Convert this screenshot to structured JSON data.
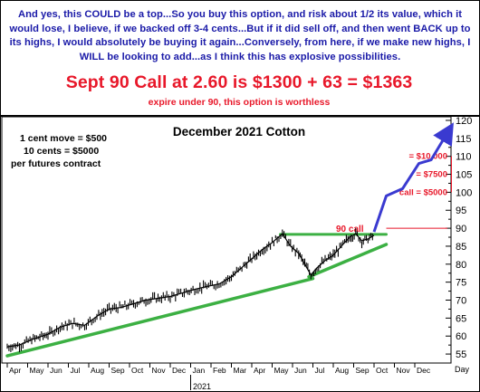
{
  "header": {
    "intro": "And yes, this COULD be a top...So you buy this option, and risk about 1/2 its value, which it would lose, I believe, if we backed off 3-4 cents...But if it did sell off, and then went BACK up to its highs, I would absolutely be buying it again...Conversely, from here, if we make new highs, I WILL be looking to add...as I think this has explosive possibilities.",
    "headline": "Sept 90 Call at 2.60 is $1300 + 63 = $1363",
    "subline": "expire under 90, this option is worthless"
  },
  "colors": {
    "intro_text": "#1a1aa8",
    "headline_text": "#e8182a",
    "price_line": "#000000",
    "trendline": "#3cb043",
    "projection_arrow": "#3a3ad0",
    "annotation_red": "#e8182a"
  },
  "chart_data": {
    "type": "line",
    "title": "December 2021 Cotton",
    "notes": [
      "1 cent move = $500",
      "10 cents = $5000",
      "per futures contract"
    ],
    "x_ticks": [
      "Apr",
      "May",
      "Jun",
      "Jul",
      "Aug",
      "Sep",
      "Oct",
      "Nov",
      "Dec",
      "Jan",
      "Feb",
      "Mar",
      "Apr",
      "May",
      "Jun",
      "Jul",
      "Aug",
      "Sep",
      "Oct",
      "Nov",
      "Dec"
    ],
    "x_year_label": "2021",
    "x_unit_label": "Day",
    "y_ticks": [
      55,
      60,
      65,
      70,
      75,
      80,
      85,
      90,
      95,
      100,
      105,
      110,
      115,
      120
    ],
    "ylim": [
      52.5,
      121
    ],
    "grid": false,
    "y_axis_side": "right",
    "annotations": {
      "call_strike": {
        "label": "90 call",
        "level": 90
      },
      "values": [
        {
          "label": "= $10,000",
          "level": 110
        },
        {
          "label": "= $7500",
          "level": 105
        },
        {
          "label": "call = $5000",
          "level": 100
        }
      ]
    },
    "price_series": {
      "name": "",
      "keypoints": [
        [
          0,
          57
        ],
        [
          6,
          57.5
        ],
        [
          12,
          59
        ],
        [
          20,
          60.5
        ],
        [
          26,
          62.5
        ],
        [
          32,
          63.5
        ],
        [
          38,
          63
        ],
        [
          44,
          65.5
        ],
        [
          50,
          67.5
        ],
        [
          56,
          68
        ],
        [
          62,
          69
        ],
        [
          68,
          70
        ],
        [
          74,
          70.5
        ],
        [
          80,
          71
        ],
        [
          86,
          72
        ],
        [
          92,
          73
        ],
        [
          98,
          73.8
        ],
        [
          104,
          74.5
        ],
        [
          110,
          76.5
        ],
        [
          116,
          79.5
        ],
        [
          120,
          81.5
        ],
        [
          125,
          84
        ],
        [
          130,
          86
        ],
        [
          135,
          88.5
        ],
        [
          139,
          85
        ],
        [
          143,
          83
        ],
        [
          146,
          80
        ],
        [
          149,
          77
        ],
        [
          152,
          79
        ],
        [
          156,
          81
        ],
        [
          160,
          82.5
        ],
        [
          164,
          85
        ],
        [
          168,
          87.5
        ],
        [
          171,
          88.5
        ],
        [
          174,
          86.5
        ],
        [
          177,
          87
        ],
        [
          180,
          88
        ]
      ]
    },
    "trendlines": [
      {
        "from": [
          0,
          54.5
        ],
        "to": [
          150,
          76
        ]
      },
      {
        "from": [
          148,
          76.5
        ],
        "to": [
          186,
          85.5
        ]
      }
    ],
    "resistance": {
      "from": [
        134,
        88.3
      ],
      "to": [
        186,
        88.3
      ],
      "level": 88.3
    },
    "projection": [
      [
        180,
        89
      ],
      [
        186,
        99
      ],
      [
        194,
        101
      ],
      [
        202,
        108
      ],
      [
        208,
        109
      ],
      [
        217,
        117.5
      ]
    ]
  }
}
